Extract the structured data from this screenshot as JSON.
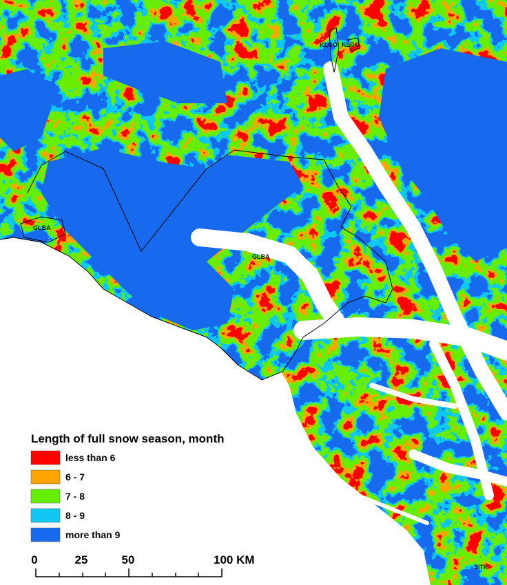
{
  "legend": {
    "title": "Length of full snow season, month",
    "items": [
      {
        "label": "less than 6",
        "color": "#ff0000"
      },
      {
        "label": "6 - 7",
        "color": "#ffa500"
      },
      {
        "label": "7 - 8",
        "color": "#66ee00"
      },
      {
        "label": "8 - 9",
        "color": "#11c8f5"
      },
      {
        "label": "more than 9",
        "color": "#1769ee"
      }
    ]
  },
  "scale_bar": {
    "labels": [
      "0",
      "25",
      "50",
      "100 KM"
    ]
  },
  "place_labels": [
    "KLGO",
    "KLGO",
    "GLBA",
    "GLBA",
    "SITK"
  ]
}
